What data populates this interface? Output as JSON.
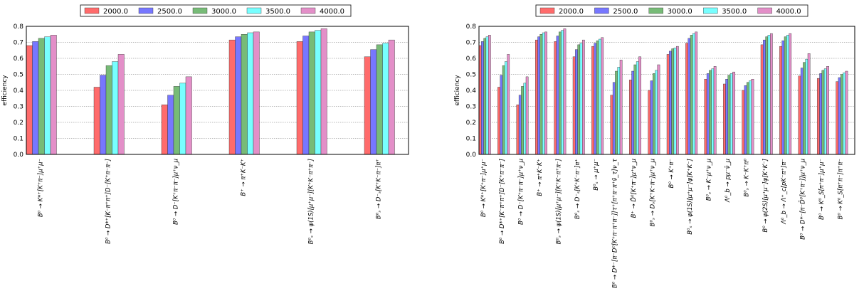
{
  "chart_data": [
    {
      "type": "bar",
      "ylabel": "efficiency",
      "ylim": [
        0,
        0.8
      ],
      "yticks": [
        "0.0",
        "0.1",
        "0.2",
        "0.3",
        "0.4",
        "0.5",
        "0.6",
        "0.7",
        "0.8"
      ],
      "grid": true,
      "legend_position": "top-center",
      "series": [
        {
          "name": "2000.0",
          "color": "#ff6b6b"
        },
        {
          "name": "2500.0",
          "color": "#7777ff"
        },
        {
          "name": "3000.0",
          "color": "#77bb77"
        },
        {
          "name": "3500.0",
          "color": "#77ffff"
        },
        {
          "name": "4000.0",
          "color": "#e38fc8"
        }
      ],
      "categories": [
        "B⁰ → K*⁺[K⁺π⁻]μ⁺μ⁻",
        "B⁰ → D*⁺[K⁻π⁺π⁺]D⁻[K⁺π⁻π⁻]",
        "B⁰ → D⁻[K⁺π⁻π⁻]μ⁺ν_μ",
        "B⁺ → π⁺K⁻K⁺",
        "B⁰ₛ → ψ(1S)[μ⁺μ⁻][K⁺K⁻π⁺π⁻]",
        "B⁰ₛ → D⁻ₛ[K⁺K⁻π⁻]π⁺"
      ],
      "values": [
        [
          0.68,
          0.705,
          0.725,
          0.735,
          0.745
        ],
        [
          0.42,
          0.495,
          0.555,
          0.58,
          0.625
        ],
        [
          0.31,
          0.37,
          0.425,
          0.445,
          0.485
        ],
        [
          0.715,
          0.735,
          0.75,
          0.76,
          0.765
        ],
        [
          0.705,
          0.74,
          0.765,
          0.775,
          0.785
        ],
        [
          0.61,
          0.655,
          0.685,
          0.695,
          0.715
        ]
      ]
    },
    {
      "type": "bar",
      "ylabel": "efficiency",
      "ylim": [
        0,
        0.8
      ],
      "yticks": [
        "0.0",
        "0.1",
        "0.2",
        "0.3",
        "0.4",
        "0.5",
        "0.6",
        "0.7",
        "0.8"
      ],
      "grid": true,
      "legend_position": "top-center",
      "series": [
        {
          "name": "2000.0",
          "color": "#ff6b6b"
        },
        {
          "name": "2500.0",
          "color": "#7777ff"
        },
        {
          "name": "3000.0",
          "color": "#77bb77"
        },
        {
          "name": "3500.0",
          "color": "#77ffff"
        },
        {
          "name": "4000.0",
          "color": "#e38fc8"
        }
      ],
      "categories": [
        "B⁰ → K*⁺[K⁺π⁻]μ⁺μ⁻",
        "B⁰ → D*⁺[K⁻π⁺π⁺]D⁻[K⁺π⁻π⁻]",
        "B⁰ → D⁻[K⁺π⁻π⁻]μ⁺ν_μ",
        "B⁺ → π⁺K⁻K⁺",
        "B⁰ₛ → ψ(1S)[μ⁺μ⁻][K⁺K⁻π⁺π⁻]",
        "B⁰ₛ → D⁻ₛ[K⁺K⁻π⁻]π⁺",
        "B⁰ₛ → μ⁺μ⁻",
        "B⁰ → D*⁻[π⁻D⁰[K⁺π⁻π⁺π⁻]]τ⁺[π⁺π⁻π⁺ν̄_τ]ν_τ",
        "B⁺ → D̄⁰[K⁺π⁻]μ⁺ν_μ",
        "B⁰ₛ → Dₛ[K⁺K⁻π⁻]μ⁺ν_μ",
        "B⁰ → K⁺π⁻",
        "B⁰ₛ → ψ(1S)[μ⁺μ⁻]φ[K⁺K⁻]",
        "B⁰ₛ → K⁻μ⁺ν_μ",
        "Λ⁰_b → pμ⁻ν̄_μ",
        "B⁰ₛ → K⁻K⁺π⁰",
        "B⁰ → ψ(2S)[μ⁺μ⁻]φ[K⁺K⁻]",
        "Λ⁰_b → Λ⁺_c[pK⁻π⁺]π⁻",
        "B⁰ → D*⁻[π⁻D̄⁰[K⁺π⁻]]μ⁺ν_μ",
        "B⁰ → K⁰_S[π⁺π⁻]μ⁺μ⁻",
        "B⁰ → K⁰_S[π⁺π⁻]π⁺π⁻"
      ],
      "values": [
        [
          0.68,
          0.705,
          0.725,
          0.735,
          0.745
        ],
        [
          0.42,
          0.495,
          0.555,
          0.58,
          0.625
        ],
        [
          0.31,
          0.37,
          0.425,
          0.445,
          0.485
        ],
        [
          0.715,
          0.735,
          0.75,
          0.76,
          0.765
        ],
        [
          0.705,
          0.74,
          0.765,
          0.775,
          0.785
        ],
        [
          0.61,
          0.655,
          0.685,
          0.695,
          0.715
        ],
        [
          0.675,
          0.695,
          0.71,
          0.72,
          0.73
        ],
        [
          0.37,
          0.45,
          0.52,
          0.545,
          0.59
        ],
        [
          0.465,
          0.52,
          0.56,
          0.58,
          0.61
        ],
        [
          0.4,
          0.46,
          0.505,
          0.525,
          0.56
        ],
        [
          0.625,
          0.645,
          0.66,
          0.665,
          0.675
        ],
        [
          0.695,
          0.725,
          0.745,
          0.755,
          0.765
        ],
        [
          0.47,
          0.505,
          0.525,
          0.535,
          0.55
        ],
        [
          0.44,
          0.47,
          0.495,
          0.505,
          0.515
        ],
        [
          0.4,
          0.43,
          0.45,
          0.46,
          0.47
        ],
        [
          0.685,
          0.715,
          0.735,
          0.745,
          0.755
        ],
        [
          0.675,
          0.71,
          0.735,
          0.745,
          0.755
        ],
        [
          0.49,
          0.54,
          0.575,
          0.595,
          0.63
        ],
        [
          0.475,
          0.505,
          0.525,
          0.535,
          0.55
        ],
        [
          0.455,
          0.48,
          0.5,
          0.51,
          0.52
        ]
      ]
    }
  ]
}
